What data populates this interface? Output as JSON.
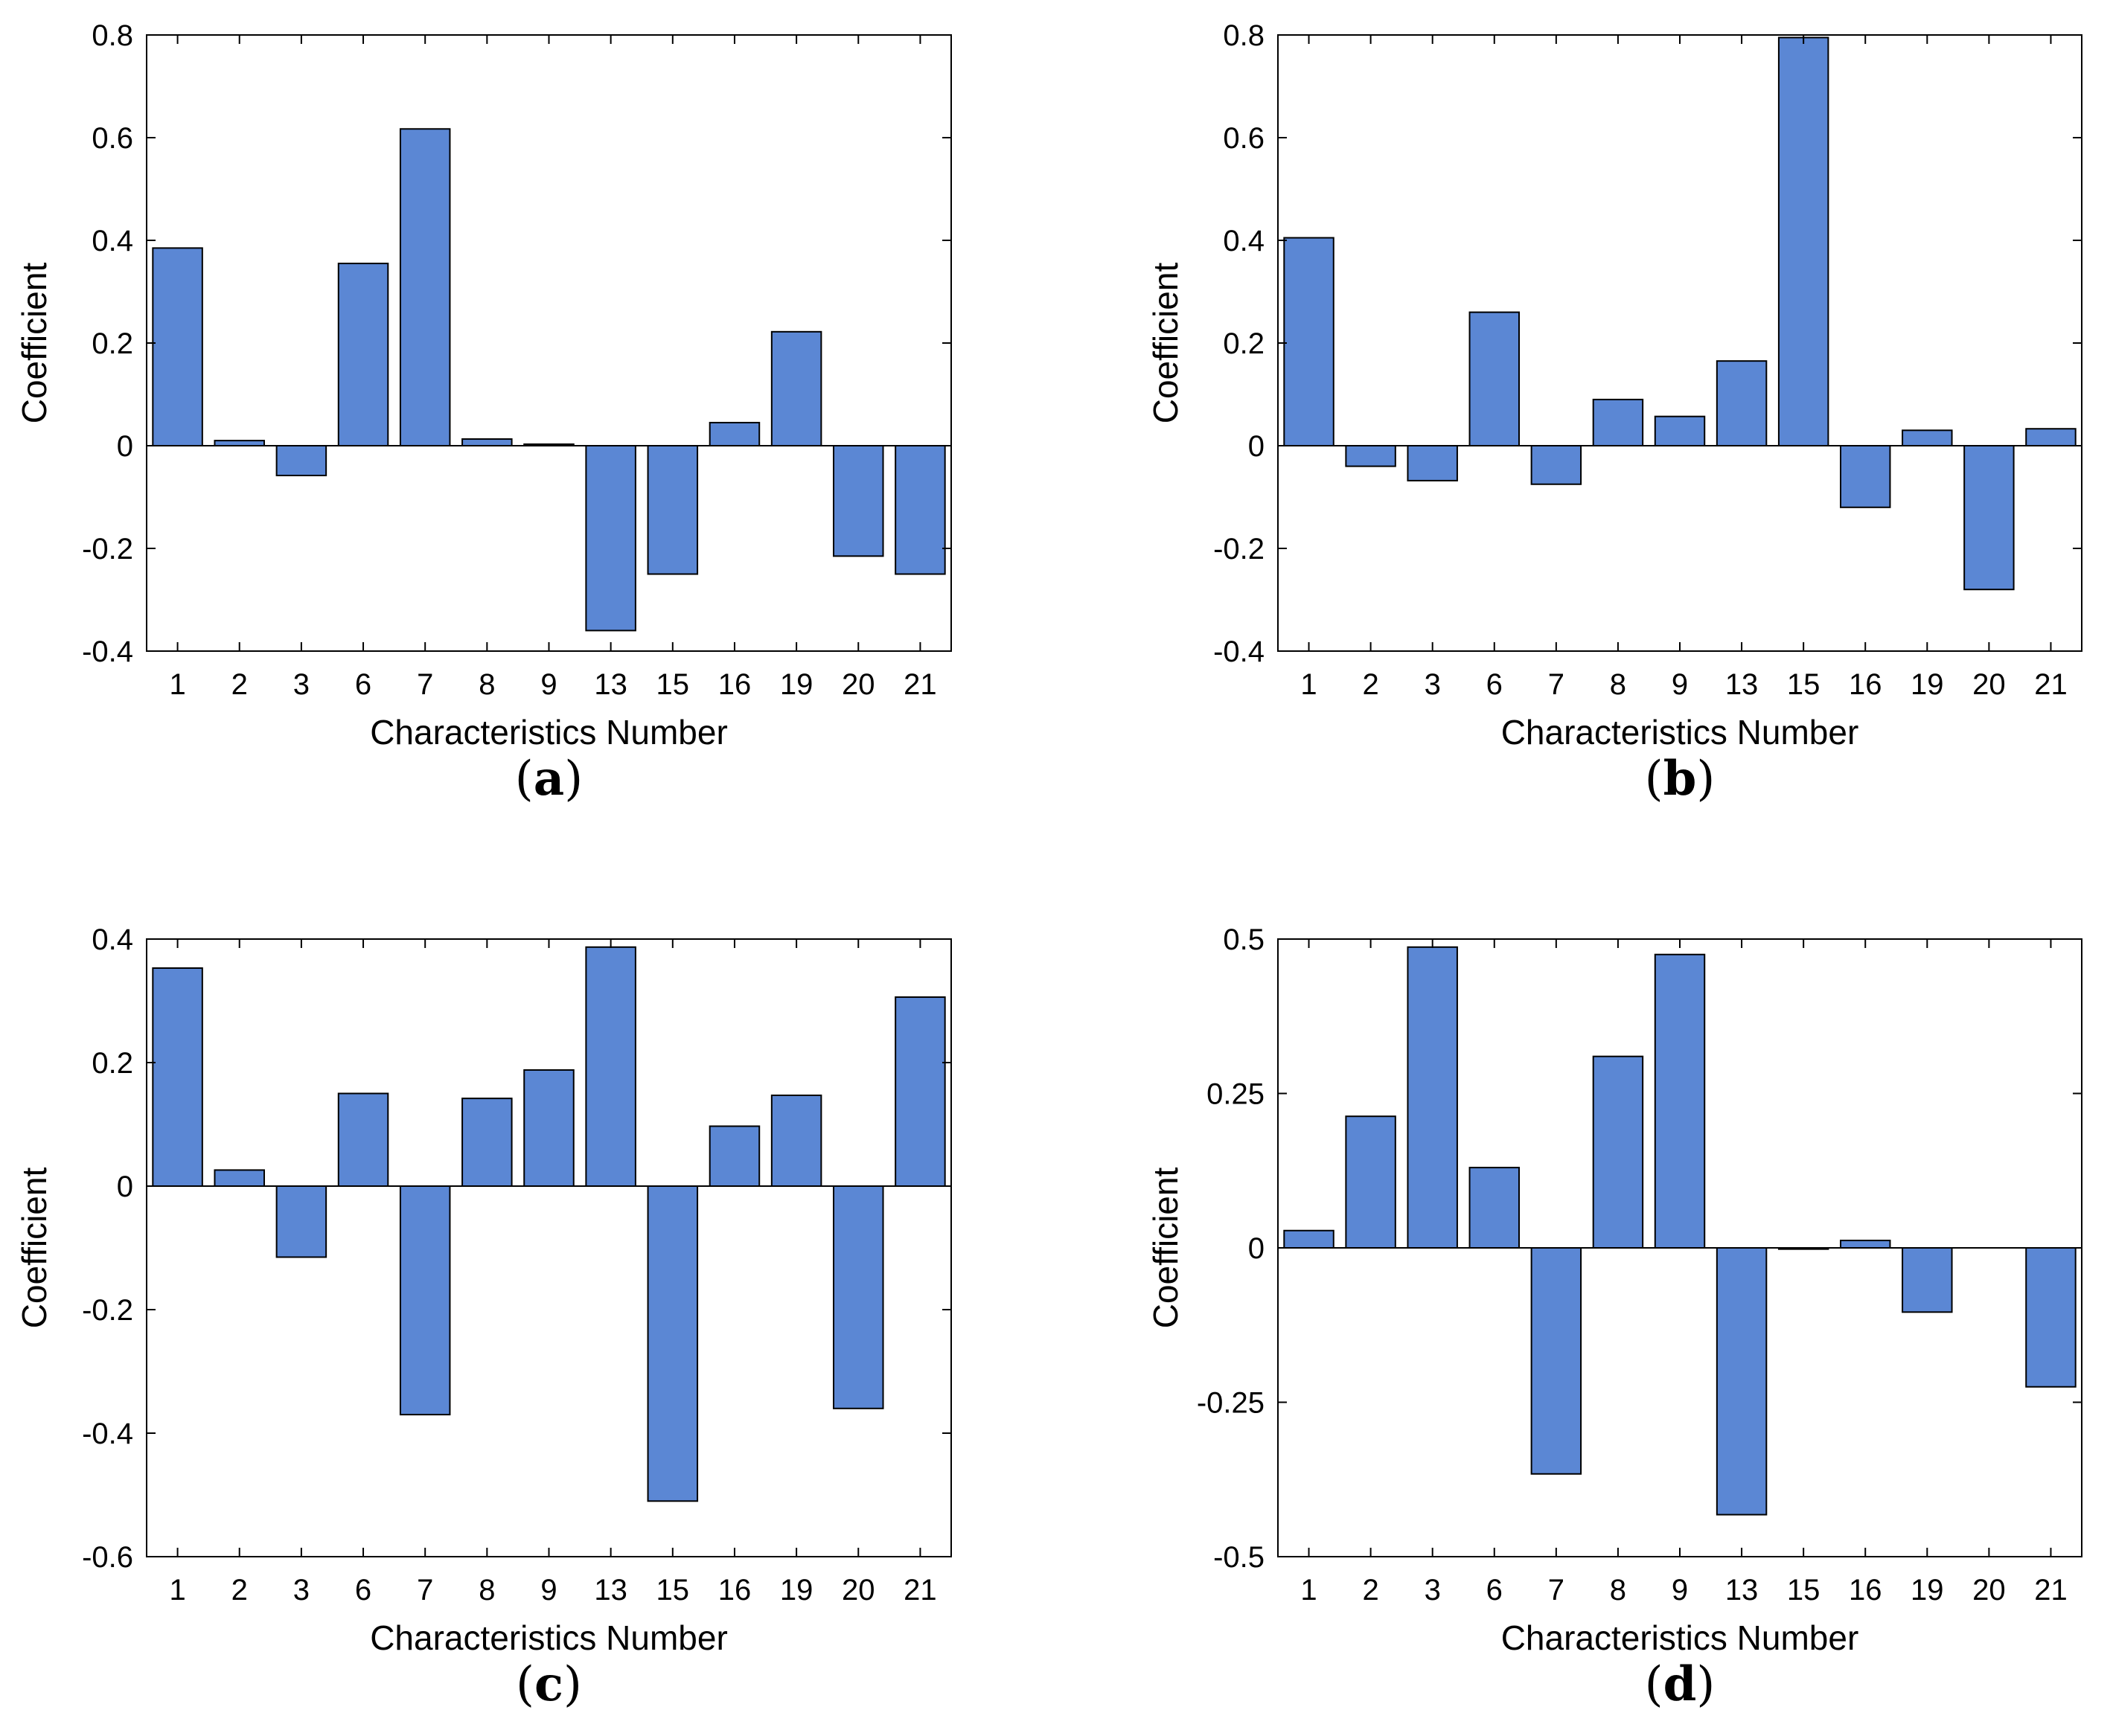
{
  "chart_data": [
    {
      "panel": "a",
      "type": "bar",
      "xlabel": "Characteristics Number",
      "ylabel": "Coefficient",
      "categories": [
        "1",
        "2",
        "3",
        "6",
        "7",
        "8",
        "9",
        "13",
        "15",
        "16",
        "19",
        "20",
        "21"
      ],
      "values": [
        0.385,
        0.01,
        -0.058,
        0.355,
        0.617,
        0.013,
        0.003,
        -0.36,
        -0.25,
        0.045,
        0.222,
        -0.215,
        -0.25
      ],
      "ylim": [
        -0.4,
        0.8
      ],
      "yticks": [
        -0.4,
        -0.2,
        0,
        0.2,
        0.4,
        0.6,
        0.8
      ],
      "ytick_labels": [
        "-0.4",
        "-0.2",
        "0",
        "0.2",
        "0.4",
        "0.6",
        "0.8"
      ],
      "bar_color": "#5b87d4",
      "grid": false,
      "caption_letter": "a"
    },
    {
      "panel": "b",
      "type": "bar",
      "xlabel": "Characteristics Number",
      "ylabel": "Coefficient",
      "categories": [
        "1",
        "2",
        "3",
        "6",
        "7",
        "8",
        "9",
        "13",
        "15",
        "16",
        "19",
        "20",
        "21"
      ],
      "values": [
        0.405,
        -0.04,
        -0.068,
        0.26,
        -0.075,
        0.09,
        0.057,
        0.165,
        0.795,
        -0.12,
        0.03,
        -0.28,
        0.033
      ],
      "ylim": [
        -0.4,
        0.8
      ],
      "yticks": [
        -0.4,
        -0.2,
        0,
        0.2,
        0.4,
        0.6,
        0.8
      ],
      "ytick_labels": [
        "-0.4",
        "-0.2",
        "0",
        "0.2",
        "0.4",
        "0.6",
        "0.8"
      ],
      "bar_color": "#5b87d4",
      "grid": false,
      "caption_letter": "b"
    },
    {
      "panel": "c",
      "type": "bar",
      "xlabel": "Characteristics Number",
      "ylabel": "Coefficient",
      "categories": [
        "1",
        "2",
        "3",
        "6",
        "7",
        "8",
        "9",
        "13",
        "15",
        "16",
        "19",
        "20",
        "21"
      ],
      "values": [
        0.353,
        0.026,
        -0.115,
        0.15,
        -0.37,
        0.142,
        0.188,
        0.387,
        -0.51,
        0.097,
        0.147,
        -0.36,
        0.306
      ],
      "ylim": [
        -0.6,
        0.4
      ],
      "yticks": [
        -0.6,
        -0.4,
        -0.2,
        0,
        0.2,
        0.4
      ],
      "ytick_labels": [
        "-0.6",
        "-0.4",
        "-0.2",
        "0",
        "0.2",
        "0.4"
      ],
      "bar_color": "#5b87d4",
      "grid": false,
      "caption_letter": "c"
    },
    {
      "panel": "d",
      "type": "bar",
      "xlabel": "Characteristics Number",
      "ylabel": "Coefficient",
      "categories": [
        "1",
        "2",
        "3",
        "6",
        "7",
        "8",
        "9",
        "13",
        "15",
        "16",
        "19",
        "20",
        "21"
      ],
      "values": [
        0.028,
        0.213,
        0.487,
        0.13,
        -0.366,
        0.31,
        0.475,
        -0.432,
        -0.002,
        0.012,
        -0.104,
        0,
        -0.225
      ],
      "ylim": [
        -0.5,
        0.5
      ],
      "yticks": [
        -0.5,
        -0.25,
        0,
        0.25,
        0.5
      ],
      "ytick_labels": [
        "-0.5",
        "-0.25",
        "0",
        "0.25",
        "0.5"
      ],
      "bar_color": "#5b87d4",
      "grid": false,
      "caption_letter": "d"
    }
  ]
}
